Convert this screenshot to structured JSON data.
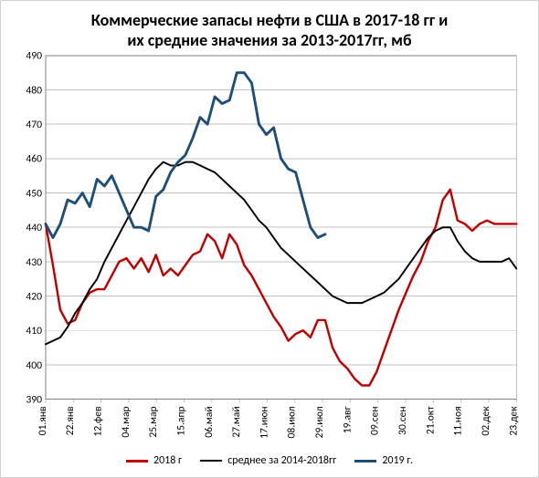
{
  "chart": {
    "type": "line",
    "title_line1": "Коммерческие запасы нефти в США в 2017-18 гг и",
    "title_line2": "их средние значения за  2013-2017гг, мб",
    "title_fontsize": 18,
    "title_fontweight": "bold",
    "title_color": "#000000",
    "background_color": "#ffffff",
    "grid_color": "#c0c0c0",
    "axis_border_color": "#808080",
    "ylim": [
      390,
      490
    ],
    "ytick_step": 10,
    "yticks": [
      390,
      400,
      410,
      420,
      430,
      440,
      450,
      460,
      470,
      480,
      490
    ],
    "ylabel_fontsize": 12,
    "x_categories": [
      "01.янв",
      "22.янв",
      "12.фев",
      "04.мар",
      "25.мар",
      "15.апр",
      "06.май",
      "27.май",
      "17.июн",
      "08.июл",
      "29.июл",
      "19.авг",
      "09.сен",
      "30.сен",
      "21.окт",
      "11.ноя",
      "02.дек",
      "23.дек"
    ],
    "x_label_fontsize": 12,
    "x_label_rotation": -90,
    "series": [
      {
        "name": "2018 г",
        "color": "#c00000",
        "line_width": 2.5,
        "values": [
          441,
          429,
          416,
          412,
          413,
          418,
          421,
          422,
          422,
          426,
          430,
          431,
          428,
          431,
          427,
          432,
          426,
          428,
          426,
          429,
          432,
          433,
          438,
          436,
          431,
          438,
          435,
          429,
          426,
          422,
          418,
          414,
          411,
          407,
          409,
          410,
          408,
          413,
          413,
          405,
          401,
          399,
          396,
          394,
          394,
          398,
          404,
          410,
          416,
          421,
          426,
          430,
          436,
          440,
          448,
          451,
          442,
          441,
          439,
          441,
          442,
          441,
          441,
          441,
          441
        ]
      },
      {
        "name": "среднее за 2014-2018гг",
        "color": "#000000",
        "line_width": 2.0,
        "values": [
          406,
          407,
          408,
          411,
          415,
          418,
          422,
          425,
          430,
          434,
          438,
          442,
          446,
          450,
          454,
          457,
          459,
          458,
          458,
          459,
          459,
          458,
          457,
          456,
          454,
          452,
          450,
          448,
          445,
          442,
          440,
          437,
          434,
          432,
          430,
          428,
          426,
          424,
          422,
          420,
          419,
          418,
          418,
          418,
          419,
          420,
          421,
          423,
          425,
          428,
          431,
          434,
          437,
          439,
          440,
          440,
          436,
          433,
          431,
          430,
          430,
          430,
          430,
          431,
          428
        ]
      },
      {
        "name": "2019 г.",
        "color": "#1f4e79",
        "line_width": 3.0,
        "values": [
          441,
          437,
          441,
          448,
          447,
          450,
          446,
          454,
          452,
          455,
          450,
          445,
          440,
          440,
          439,
          449,
          451,
          456,
          459,
          461,
          466,
          472,
          470,
          478,
          476,
          477,
          485,
          485,
          482,
          470,
          467,
          469,
          460,
          457,
          456,
          448,
          440,
          437,
          438
        ]
      }
    ],
    "legend": {
      "position": "bottom",
      "fontsize": 12,
      "items": [
        {
          "label": "2018 г",
          "color": "#c00000",
          "line_width": 3
        },
        {
          "label": "среднее за 2014-2018гг",
          "color": "#000000",
          "line_width": 2
        },
        {
          "label": "2019 г.",
          "color": "#1f4e79",
          "line_width": 3
        }
      ]
    }
  }
}
